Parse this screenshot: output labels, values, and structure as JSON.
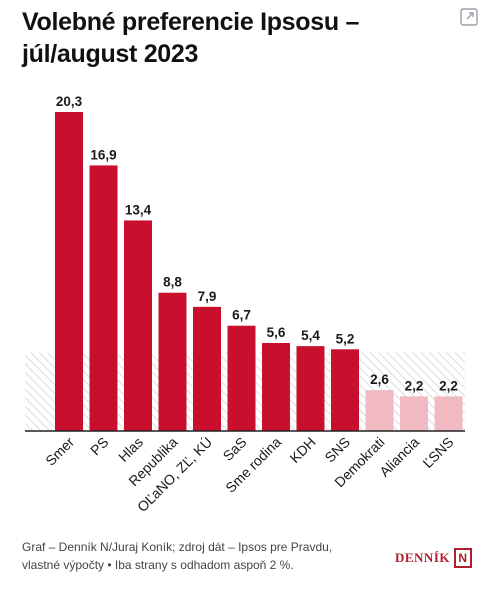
{
  "header": {
    "title_line1": "Volebné preferencie Ipsosu –",
    "title_line2": "júl/august 2023"
  },
  "chart_data": {
    "type": "bar",
    "title": "Volebné preferencie Ipsosu – júl/august 2023",
    "categories": [
      "Smer",
      "PS",
      "Hlas",
      "Republika",
      "OĽaNO, ZĽ, KÚ",
      "SaS",
      "Sme rodina",
      "KDH",
      "SNS",
      "Demokrati",
      "Aliancia",
      "ĽSNS"
    ],
    "values": [
      20.3,
      16.9,
      13.4,
      8.8,
      7.9,
      6.7,
      5.6,
      5.4,
      5.2,
      2.6,
      2.2,
      2.2
    ],
    "value_labels": [
      "20,3",
      "16,9",
      "13,4",
      "8,8",
      "7,9",
      "6,7",
      "5,6",
      "5,4",
      "5,2",
      "2,6",
      "2,2",
      "2,2"
    ],
    "threshold": 5,
    "ylim": [
      0,
      20.3
    ],
    "grid": false,
    "colors": {
      "above_threshold": "#c8102e",
      "below_threshold": "#f1b9c1",
      "hatch": "#d9dde3"
    }
  },
  "footer": {
    "source_line1": "Graf – Denník N/Juraj Koník; zdroj dát – Ipsos pre Pravdu,",
    "source_line2": "vlastné výpočty • Iba strany s odhadom aspoň 2 %."
  },
  "brand": {
    "name": "DENNÍK",
    "mark": "N"
  }
}
